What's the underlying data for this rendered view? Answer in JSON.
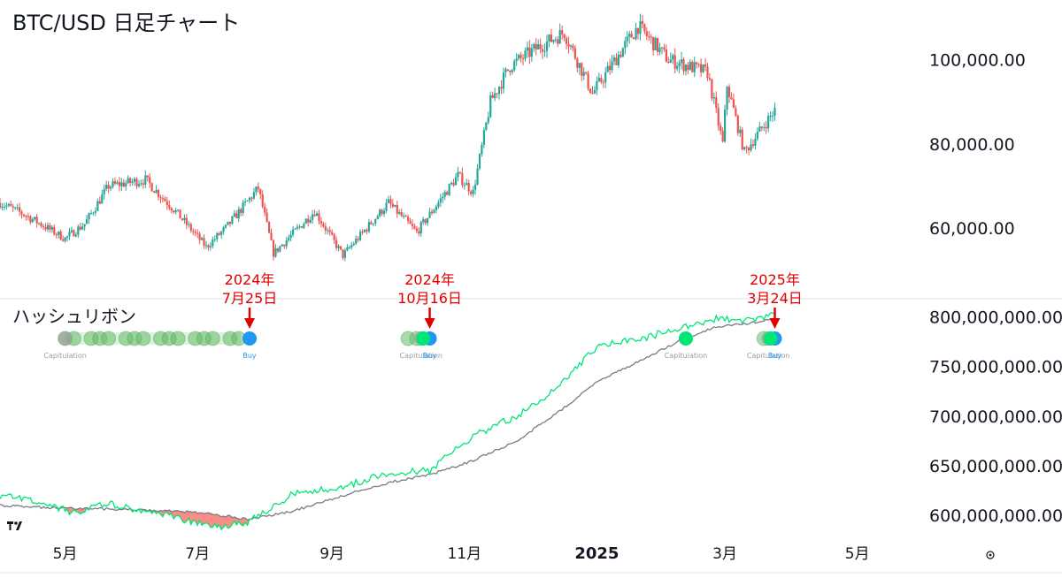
{
  "chart_data": [
    {
      "type": "candlestick",
      "title": "BTC/USD 日足チャート",
      "y_ticks": [
        "100,000.00",
        "80,000.00",
        "60,000.00"
      ],
      "y_tick_values": [
        100000,
        80000,
        60000
      ],
      "ylim": [
        47000,
        110000
      ],
      "colors": {
        "up": "#26a69a",
        "down": "#ef5350"
      },
      "price_path": [
        {
          "date": "2024-04-01",
          "close": 66000
        },
        {
          "date": "2024-04-13",
          "close": 63000
        },
        {
          "date": "2024-05-01",
          "close": 57500
        },
        {
          "date": "2024-05-10",
          "close": 61000
        },
        {
          "date": "2024-05-21",
          "close": 70000
        },
        {
          "date": "2024-06-07",
          "close": 71500
        },
        {
          "date": "2024-06-20",
          "close": 64500
        },
        {
          "date": "2024-07-05",
          "close": 55500
        },
        {
          "date": "2024-07-14",
          "close": 60000
        },
        {
          "date": "2024-07-29",
          "close": 69500
        },
        {
          "date": "2024-08-05",
          "close": 54000
        },
        {
          "date": "2024-08-24",
          "close": 64000
        },
        {
          "date": "2024-09-06",
          "close": 53500
        },
        {
          "date": "2024-09-27",
          "close": 66000
        },
        {
          "date": "2024-10-10",
          "close": 59000
        },
        {
          "date": "2024-10-29",
          "close": 72500
        },
        {
          "date": "2024-11-05",
          "close": 68500
        },
        {
          "date": "2024-11-13",
          "close": 90000
        },
        {
          "date": "2024-11-22",
          "close": 98500
        },
        {
          "date": "2024-12-05",
          "close": 103000
        },
        {
          "date": "2024-12-17",
          "close": 106500
        },
        {
          "date": "2024-12-30",
          "close": 92000
        },
        {
          "date": "2025-01-20",
          "close": 108000
        },
        {
          "date": "2025-02-03",
          "close": 100000
        },
        {
          "date": "2025-02-21",
          "close": 97000
        },
        {
          "date": "2025-02-28",
          "close": 80000
        },
        {
          "date": "2025-03-02",
          "close": 94000
        },
        {
          "date": "2025-03-10",
          "close": 78000
        },
        {
          "date": "2025-03-24",
          "close": 88000
        }
      ],
      "annotations": [
        {
          "date": "2024-07-25",
          "label_year": "2024年",
          "label_date": "7月25日"
        },
        {
          "date": "2024-10-16",
          "label_year": "2024年",
          "label_date": "10月16日"
        },
        {
          "date": "2025-03-24",
          "label_year": "2025年",
          "label_date": "3月24日"
        }
      ]
    },
    {
      "type": "line",
      "title": "ハッシュリボン",
      "y_ticks": [
        "800,000,000.00",
        "750,000,000.00",
        "700,000,000.00",
        "650,000,000.00",
        "600,000,000.00"
      ],
      "y_tick_values": [
        800000000,
        750000000,
        700000000,
        650000000,
        600000000
      ],
      "ylim": [
        585000000,
        812000000
      ],
      "series": [
        {
          "color": "#00e676",
          "points": [
            {
              "date": "2024-04-01",
              "value": 620000000
            },
            {
              "date": "2024-04-14",
              "value": 615000000
            },
            {
              "date": "2024-05-05",
              "value": 603000000
            },
            {
              "date": "2024-05-20",
              "value": 612000000
            },
            {
              "date": "2024-06-08",
              "value": 604000000
            },
            {
              "date": "2024-06-18",
              "value": 601000000
            },
            {
              "date": "2024-06-28",
              "value": 593000000
            },
            {
              "date": "2024-07-10",
              "value": 588000000
            },
            {
              "date": "2024-07-25",
              "value": 594000000
            },
            {
              "date": "2024-08-15",
              "value": 623000000
            },
            {
              "date": "2024-09-05",
              "value": 628000000
            },
            {
              "date": "2024-09-27",
              "value": 643000000
            },
            {
              "date": "2024-10-16",
              "value": 645000000
            },
            {
              "date": "2024-11-05",
              "value": 680000000
            },
            {
              "date": "2024-11-25",
              "value": 700000000
            },
            {
              "date": "2024-12-15",
              "value": 730000000
            },
            {
              "date": "2025-01-01",
              "value": 770000000
            },
            {
              "date": "2025-01-25",
              "value": 780000000
            },
            {
              "date": "2025-02-10",
              "value": 790000000
            },
            {
              "date": "2025-02-25",
              "value": 798000000
            },
            {
              "date": "2025-03-10",
              "value": 796000000
            },
            {
              "date": "2025-03-24",
              "value": 803000000
            }
          ]
        },
        {
          "color": "#787b86",
          "points": [
            {
              "date": "2024-04-01",
              "value": 610000000
            },
            {
              "date": "2024-05-01",
              "value": 607000000
            },
            {
              "date": "2024-06-01",
              "value": 606000000
            },
            {
              "date": "2024-07-01",
              "value": 603000000
            },
            {
              "date": "2024-07-25",
              "value": 596000000
            },
            {
              "date": "2024-08-15",
              "value": 605000000
            },
            {
              "date": "2024-09-05",
              "value": 619000000
            },
            {
              "date": "2024-09-27",
              "value": 633000000
            },
            {
              "date": "2024-10-16",
              "value": 641000000
            },
            {
              "date": "2024-11-05",
              "value": 655000000
            },
            {
              "date": "2024-11-25",
              "value": 675000000
            },
            {
              "date": "2024-12-15",
              "value": 705000000
            },
            {
              "date": "2025-01-01",
              "value": 735000000
            },
            {
              "date": "2025-01-25",
              "value": 760000000
            },
            {
              "date": "2025-02-10",
              "value": 778000000
            },
            {
              "date": "2025-02-25",
              "value": 790000000
            },
            {
              "date": "2025-03-10",
              "value": 793000000
            },
            {
              "date": "2025-03-24",
              "value": 798000000
            }
          ]
        }
      ],
      "signals": [
        {
          "date": "2024-05-01",
          "kind": "capitulation",
          "label": "Capitulation"
        },
        {
          "date": "2024-07-25",
          "kind": "buy",
          "label": "Buy"
        },
        {
          "date": "2024-10-12",
          "kind": "capitulation",
          "label": "Capitulation"
        },
        {
          "date": "2024-10-16",
          "kind": "buy",
          "label": "Buy"
        },
        {
          "date": "2025-02-11",
          "kind": "capitulation",
          "label": "Capitulation"
        },
        {
          "date": "2025-03-21",
          "kind": "capitulation",
          "label": "Capitulation"
        },
        {
          "date": "2025-03-24",
          "kind": "buy",
          "label": "Buy"
        }
      ],
      "signal_colors": {
        "capitulation": "#66bb6a",
        "buy": "#2196f3",
        "fill_negative": "#f44336"
      }
    }
  ],
  "x_axis": {
    "ticks": [
      {
        "label": "5月",
        "date": "2024-05-01",
        "bold": false
      },
      {
        "label": "7月",
        "date": "2024-07-01",
        "bold": false
      },
      {
        "label": "9月",
        "date": "2024-09-01",
        "bold": false
      },
      {
        "label": "11月",
        "date": "2024-11-01",
        "bold": false
      },
      {
        "label": "2025",
        "date": "2025-01-01",
        "bold": true
      },
      {
        "label": "3月",
        "date": "2025-03-01",
        "bold": false
      },
      {
        "label": "5月",
        "date": "2025-05-01",
        "bold": false
      }
    ],
    "xlim": [
      "2024-04-01",
      "2025-05-26"
    ]
  },
  "icons": {
    "watermark": "tradingview-logo-icon",
    "settings": "settings-icon"
  }
}
